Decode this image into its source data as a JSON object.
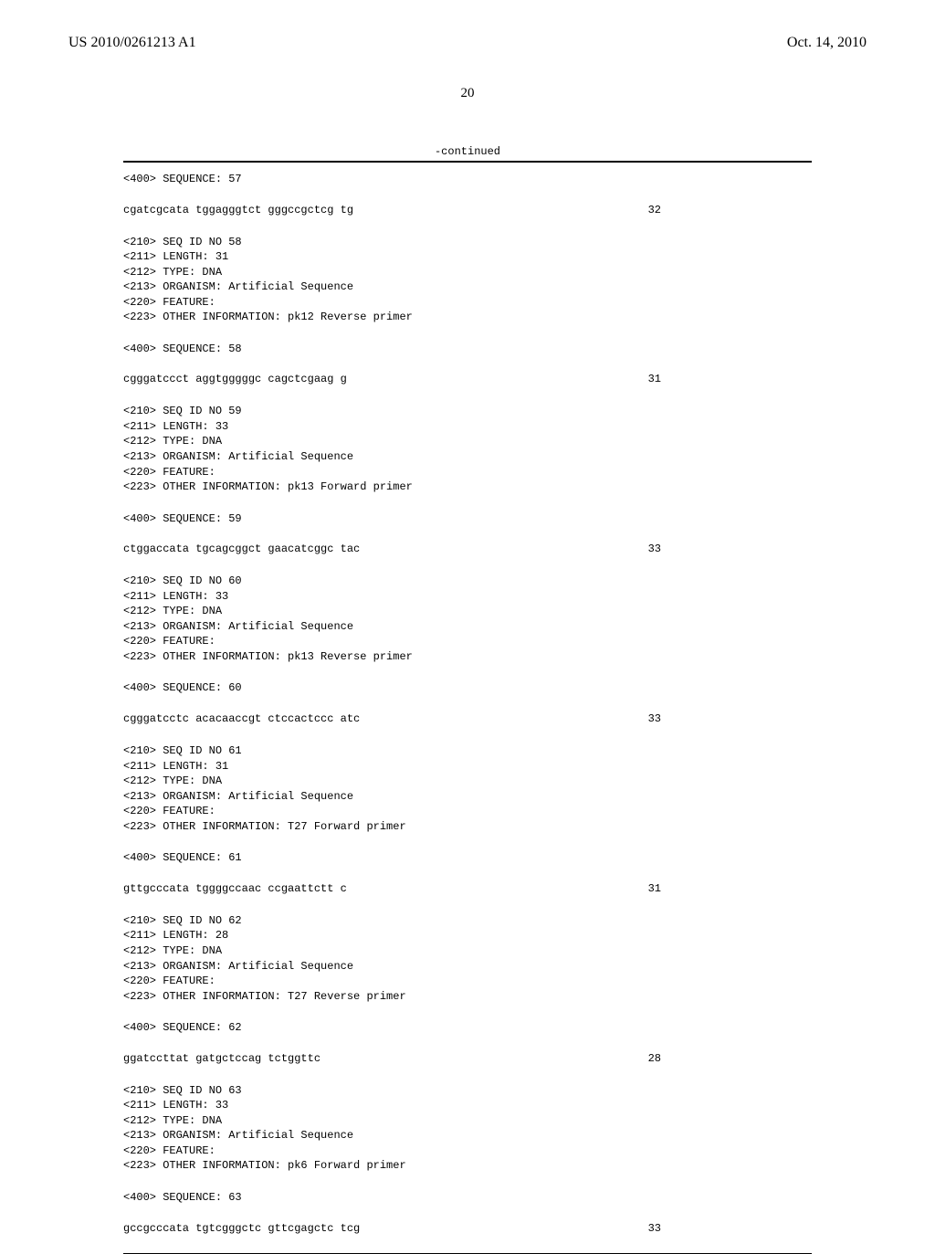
{
  "header": {
    "pub_number": "US 2010/0261213 A1",
    "pub_date": "Oct. 14, 2010"
  },
  "page_number": "20",
  "continued_label": "-continued",
  "entries": [
    {
      "lead_seq_label": "<400> SEQUENCE: 57",
      "sequence": "cgatcgcata tggagggtct gggccgctcg tg",
      "length": "32",
      "next_meta": [
        "<210> SEQ ID NO 58",
        "<211> LENGTH: 31",
        "<212> TYPE: DNA",
        "<213> ORGANISM: Artificial Sequence",
        "<220> FEATURE:",
        "<223> OTHER INFORMATION: pk12 Reverse primer"
      ]
    },
    {
      "lead_seq_label": "<400> SEQUENCE: 58",
      "sequence": "cgggatccct aggtgggggc cagctcgaag g",
      "length": "31",
      "next_meta": [
        "<210> SEQ ID NO 59",
        "<211> LENGTH: 33",
        "<212> TYPE: DNA",
        "<213> ORGANISM: Artificial Sequence",
        "<220> FEATURE:",
        "<223> OTHER INFORMATION: pk13 Forward primer"
      ]
    },
    {
      "lead_seq_label": "<400> SEQUENCE: 59",
      "sequence": "ctggaccata tgcagcggct gaacatcggc tac",
      "length": "33",
      "next_meta": [
        "<210> SEQ ID NO 60",
        "<211> LENGTH: 33",
        "<212> TYPE: DNA",
        "<213> ORGANISM: Artificial Sequence",
        "<220> FEATURE:",
        "<223> OTHER INFORMATION: pk13 Reverse primer"
      ]
    },
    {
      "lead_seq_label": "<400> SEQUENCE: 60",
      "sequence": "cgggatcctc acacaaccgt ctccactccc atc",
      "length": "33",
      "next_meta": [
        "<210> SEQ ID NO 61",
        "<211> LENGTH: 31",
        "<212> TYPE: DNA",
        "<213> ORGANISM: Artificial Sequence",
        "<220> FEATURE:",
        "<223> OTHER INFORMATION: T27 Forward primer"
      ]
    },
    {
      "lead_seq_label": "<400> SEQUENCE: 61",
      "sequence": "gttgcccata tggggccaac ccgaattctt c",
      "length": "31",
      "next_meta": [
        "<210> SEQ ID NO 62",
        "<211> LENGTH: 28",
        "<212> TYPE: DNA",
        "<213> ORGANISM: Artificial Sequence",
        "<220> FEATURE:",
        "<223> OTHER INFORMATION: T27 Reverse primer"
      ]
    },
    {
      "lead_seq_label": "<400> SEQUENCE: 62",
      "sequence": "ggatccttat gatgctccag tctggttc",
      "length": "28",
      "next_meta": [
        "<210> SEQ ID NO 63",
        "<211> LENGTH: 33",
        "<212> TYPE: DNA",
        "<213> ORGANISM: Artificial Sequence",
        "<220> FEATURE:",
        "<223> OTHER INFORMATION: pk6 Forward primer"
      ]
    },
    {
      "lead_seq_label": "<400> SEQUENCE: 63",
      "sequence": "gccgcccata tgtcgggctc gttcgagctc tcg",
      "length": "33",
      "next_meta": []
    }
  ]
}
